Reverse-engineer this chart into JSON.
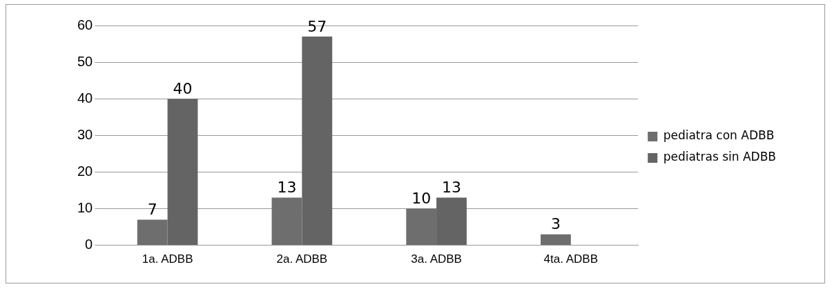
{
  "chart_data": {
    "type": "bar",
    "categories": [
      "1a. ADBB",
      "2a. ADBB",
      "3a. ADBB",
      "4ta. ADBB"
    ],
    "series": [
      {
        "name": "pediatra con ADBB",
        "color": "#6e6e6e",
        "values": [
          7,
          13,
          10,
          3
        ]
      },
      {
        "name": "pediatras sin ADBB",
        "color": "#646464",
        "values": [
          40,
          57,
          13,
          null
        ]
      }
    ],
    "ylim": [
      0,
      60
    ],
    "yticks": [
      0,
      10,
      20,
      30,
      40,
      50,
      60
    ],
    "grid": "y",
    "legend": "right",
    "data_labels": true
  }
}
